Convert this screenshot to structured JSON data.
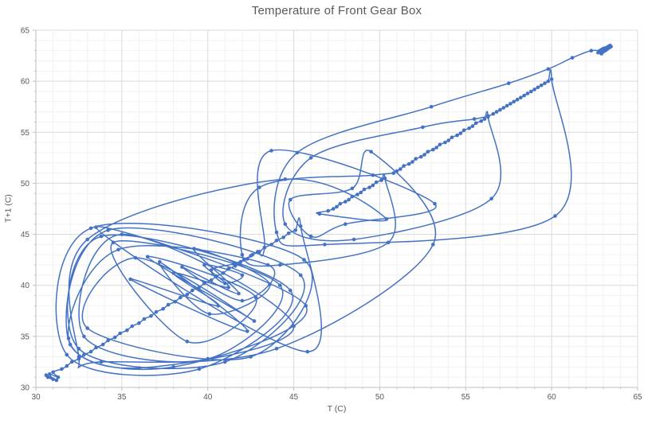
{
  "chart_data": {
    "type": "scatter",
    "subtype": "lag_plot_smooth_lines_with_markers",
    "title": "Temperature of Front Gear Box",
    "xlabel": "T (C)",
    "ylabel": "T+1 (C)",
    "xlim": [
      30,
      65
    ],
    "ylim": [
      30,
      65
    ],
    "x_tick_values": [
      30,
      35,
      40,
      45,
      50,
      55,
      60,
      65
    ],
    "x_tick_labels": [
      "30",
      "35",
      "40",
      "45",
      "50",
      "55",
      "60",
      "65"
    ],
    "y_tick_values": [
      30,
      35,
      40,
      45,
      50,
      55,
      60,
      65
    ],
    "y_tick_labels": [
      "30",
      "35",
      "40",
      "45",
      "50",
      "55",
      "60",
      "65"
    ],
    "minor_unit": 1,
    "major_unit": 5,
    "grid": {
      "major": true,
      "minor": true
    },
    "legend_position": "none",
    "point_mapping": "each plotted point is (temperature[i], temperature[i+1]) from the series below, joined by a smooth curve with round markers",
    "temperature_series": [
      30.6,
      31.2,
      30.7,
      31.0,
      30.8,
      31.3,
      31.0,
      31.5,
      31.8,
      32.1,
      32.5,
      32.8,
      33.2,
      33.5,
      33.9,
      34.2,
      34.6,
      34.9,
      35.3,
      35.6,
      36.0,
      36.3,
      36.7,
      37.0,
      37.4,
      37.7,
      38.1,
      38.4,
      38.8,
      39.1,
      39.5,
      39.8,
      40.2,
      40.5,
      40.9,
      41.2,
      41.6,
      41.9,
      42.3,
      42.6,
      43.0,
      43.3,
      43.7,
      44.0,
      44.4,
      44.7,
      45.1,
      45.4,
      45.8,
      33.5,
      45.7,
      38.0,
      32.0,
      34.2,
      45.4,
      41.0,
      32.5,
      33.8,
      44.8,
      39.5,
      31.8,
      33.2,
      45.6,
      42.5,
      33.0,
      35.8,
      42.7,
      36.5,
      42.8,
      38.8,
      34.5,
      44.2,
      40.0,
      32.8,
      35.0,
      45.0,
      36.0,
      31.9,
      34.8,
      43.5,
      42.0,
      38.5,
      41.8,
      39.2,
      43.6,
      40.1,
      37.2,
      42.3,
      35.5,
      40.6,
      38.0,
      41.2,
      39.8,
      42.0,
      41.0,
      40.2,
      41.5,
      42.1,
      42.5,
      42.9,
      43.3,
      43.7,
      53.2,
      48.0,
      46.0,
      44.8,
      48.4,
      49.5,
      53.1,
      44.0,
      33.8,
      32.5,
      33.0,
      44.5,
      50.4,
      46.5,
      47.0,
      47.3,
      47.5,
      47.7,
      48.0,
      48.2,
      48.4,
      48.7,
      48.9,
      49.1,
      49.4,
      49.6,
      49.8,
      50.1,
      50.3,
      50.5,
      44.2,
      42.0,
      43.0,
      49.6,
      50.8,
      51.0,
      51.2,
      51.4,
      51.7,
      51.9,
      52.1,
      52.4,
      52.6,
      52.8,
      53.1,
      53.3,
      53.5,
      53.8,
      54.0,
      54.2,
      54.5,
      54.7,
      54.9,
      55.2,
      55.4,
      55.6,
      55.9,
      56.1,
      56.3,
      56.5,
      48.5,
      44.5,
      46.0,
      52.5,
      55.5,
      56.3,
      56.6,
      56.8,
      57.0,
      57.2,
      57.4,
      57.6,
      57.8,
      58.0,
      58.2,
      58.4,
      58.6,
      58.8,
      59.0,
      59.2,
      59.4,
      59.6,
      59.8,
      60.0,
      60.2,
      46.8,
      44.0,
      45.2,
      53.0,
      57.5,
      59.8,
      61.2,
      62.3,
      63.0,
      62.9,
      62.7,
      62.8,
      63.0,
      62.9,
      63.1,
      63.0,
      63.2,
      63.1,
      63.25,
      63.2,
      63.3,
      63.25,
      63.35,
      63.3,
      63.4,
      63.35,
      63.45,
      63.4,
      63.5
    ],
    "colors": {
      "series": "#4472C4",
      "grid_major": "#D9D9D9",
      "grid_minor": "#F2F2F2",
      "axis_line": "#BFBFBF",
      "text": "#595959",
      "background": "#FFFFFF"
    }
  }
}
